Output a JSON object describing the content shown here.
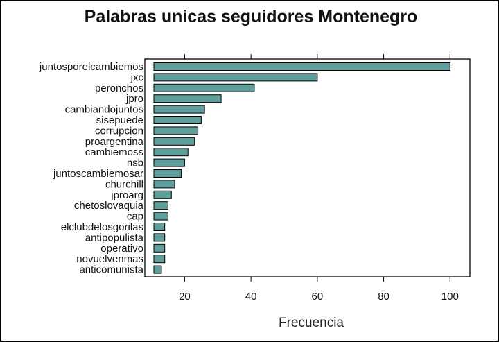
{
  "chart_data": {
    "type": "bar",
    "orientation": "horizontal",
    "title": "Palabras unicas seguidores Montenegro",
    "xlabel": "Frecuencia",
    "ylabel": "",
    "xlim": [
      8,
      106
    ],
    "xticks": [
      20,
      40,
      60,
      80,
      100
    ],
    "tick_position": "top-and-bottom",
    "grid": false,
    "bar_color": "#5f9e9a",
    "bar_outline": "#000000",
    "categories": [
      "juntosporelcambiemos",
      "jxc",
      "peronchos",
      "jpro",
      "cambiandojuntos",
      "sisepuede",
      "corrupcion",
      "proargentina",
      "cambiemoss",
      "nsb",
      "juntoscambiemosar",
      "churchill",
      "jproarg",
      "chetoslovaquia",
      "cap",
      "elclubdelosgorilas",
      "antipopulista",
      "operativo",
      "novuelvenmas",
      "anticomunista"
    ],
    "values": [
      100,
      60,
      41,
      31,
      26,
      25,
      24,
      23,
      21,
      20,
      19,
      17,
      16,
      15,
      15,
      14,
      14,
      14,
      14,
      13
    ]
  }
}
